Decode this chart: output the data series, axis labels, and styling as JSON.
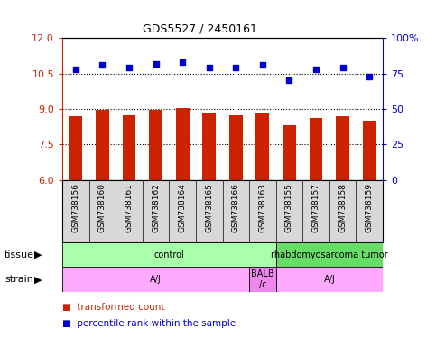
{
  "title": "GDS5527 / 2450161",
  "samples": [
    "GSM738156",
    "GSM738160",
    "GSM738161",
    "GSM738162",
    "GSM738164",
    "GSM738165",
    "GSM738166",
    "GSM738163",
    "GSM738155",
    "GSM738157",
    "GSM738158",
    "GSM738159"
  ],
  "bar_values": [
    8.7,
    8.95,
    8.75,
    8.95,
    9.05,
    8.85,
    8.75,
    8.85,
    8.3,
    8.6,
    8.7,
    8.5
  ],
  "dot_values": [
    78,
    81,
    79,
    82,
    83,
    79,
    79,
    81,
    70,
    78,
    79,
    73
  ],
  "ylim_left": [
    6,
    12
  ],
  "ylim_right": [
    0,
    100
  ],
  "yticks_left": [
    6,
    7.5,
    9,
    10.5,
    12
  ],
  "yticks_right": [
    0,
    25,
    50,
    75,
    100
  ],
  "bar_color": "#cc2200",
  "dot_color": "#0000cc",
  "tissue_groups": [
    {
      "label": "control",
      "start": 0,
      "end": 8,
      "color": "#aaffaa"
    },
    {
      "label": "rhabdomyosarcoma tumor",
      "start": 8,
      "end": 12,
      "color": "#66dd66"
    }
  ],
  "strain_groups": [
    {
      "label": "A/J",
      "start": 0,
      "end": 7,
      "color": "#ffaaff"
    },
    {
      "label": "BALB\n/c",
      "start": 7,
      "end": 8,
      "color": "#ee88ee"
    },
    {
      "label": "A/J",
      "start": 8,
      "end": 12,
      "color": "#ffaaff"
    }
  ],
  "legend_bar_label": "transformed count",
  "legend_dot_label": "percentile rank within the sample",
  "background_color": "#ffffff",
  "axis_color_left": "#cc2200",
  "axis_color_right": "#0000cc",
  "sample_box_color": "#d8d8d8",
  "grid_color": "#000000"
}
